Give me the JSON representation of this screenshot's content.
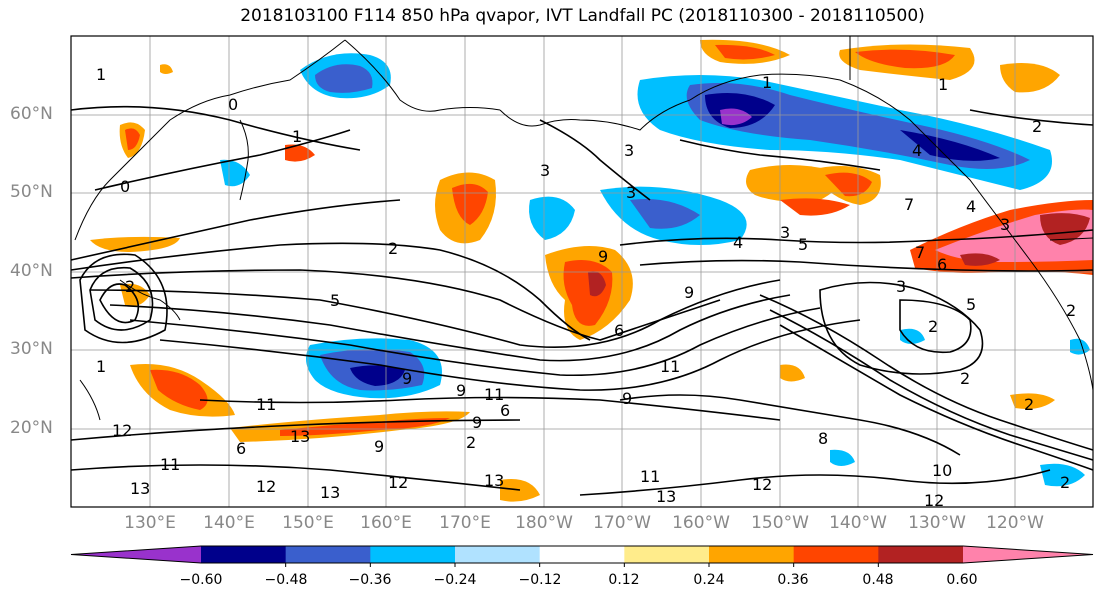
{
  "title": "2018103100 F114 850 hPa qvapor, IVT Landfall PC (2018110300 - 2018110500)",
  "lat_labels": [
    "60°N",
    "50°N",
    "40°N",
    "30°N",
    "20°N"
  ],
  "lon_labels": [
    "130°E",
    "140°E",
    "150°E",
    "160°E",
    "170°E",
    "180°W",
    "170°W",
    "160°W",
    "150°W",
    "140°W",
    "130°W",
    "120°W"
  ],
  "colorbar": {
    "colors": [
      "#9932cc",
      "#00008b",
      "#3a5fcd",
      "#00bfff",
      "#b0e2ff",
      "#ffffff",
      "#ffec8b",
      "#ffa500",
      "#ff4500",
      "#b22222",
      "#ff82ab"
    ],
    "ticks": [
      "−0.60",
      "−0.48",
      "−0.36",
      "−0.24",
      "−0.12",
      "0.12",
      "0.24",
      "0.36",
      "0.48",
      "0.60"
    ]
  },
  "contour_labels": [
    "1",
    "0",
    "1",
    "0",
    "2",
    "2",
    "3",
    "4",
    "3",
    "5",
    "6",
    "1",
    "2",
    "6",
    "9",
    "9",
    "11",
    "11",
    "9",
    "6",
    "2",
    "12",
    "13",
    "11",
    "12",
    "13",
    "11",
    "13",
    "5",
    "9",
    "8",
    "7",
    "6",
    "3",
    "2",
    "2",
    "2",
    "10",
    "12",
    "2",
    "12",
    "1",
    "3",
    "9",
    "13",
    "9",
    "11",
    "12",
    "9",
    "1",
    "13",
    "7",
    "4",
    "3",
    "2",
    "3",
    "4",
    "5"
  ]
}
